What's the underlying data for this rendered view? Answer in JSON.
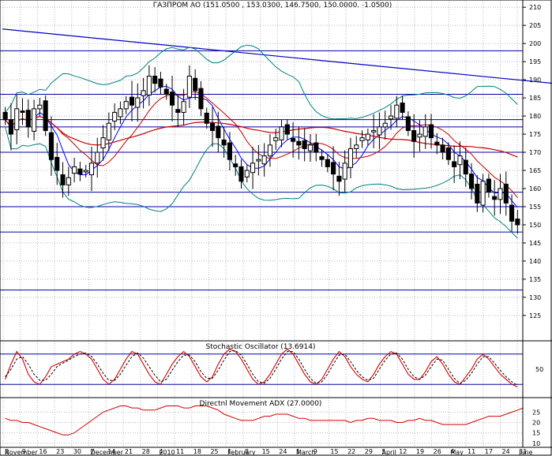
{
  "chart_data": [
    {
      "type": "candlestick",
      "title": "ГАЗПРОМ AO (151.0500 , 153.0300, 146.7500, 150.0000, -1.0500)",
      "ylim": [
        118,
        212
      ],
      "y_ticks": [
        125,
        130,
        135,
        140,
        145,
        150,
        155,
        160,
        165,
        170,
        175,
        180,
        185,
        190,
        195,
        200,
        205,
        210
      ],
      "x_day_labels": [
        "2",
        "9",
        "16",
        "23",
        "30",
        "7",
        "14",
        "21",
        "28",
        "4",
        "11",
        "18",
        "25",
        "1",
        "8",
        "15",
        "24",
        "1",
        "9",
        "15",
        "22",
        "29",
        "5",
        "12",
        "19",
        "26",
        "4",
        "11",
        "17",
        "24",
        "31"
      ],
      "x_month_labels": [
        "November",
        "December",
        "2010",
        "February",
        "March",
        "April",
        "May",
        "June"
      ],
      "horizontal_levels": [
        132,
        148,
        155,
        159,
        170,
        177,
        179,
        186,
        198
      ],
      "trendline": {
        "from": [
          0,
          204
        ],
        "to": [
          108,
          187
        ]
      },
      "close": [
        179,
        175,
        182,
        181,
        177,
        182,
        183,
        176,
        168,
        165,
        161,
        163,
        166,
        164,
        165,
        167,
        170,
        174,
        178,
        181,
        182,
        184,
        183,
        185,
        187,
        191,
        189,
        188,
        186,
        183,
        181,
        184,
        191,
        187,
        182,
        178,
        176,
        174,
        172,
        168,
        166,
        162,
        165,
        167,
        168,
        169,
        172,
        174,
        177,
        175,
        173,
        172,
        171,
        172,
        170,
        168,
        166,
        164,
        162,
        167,
        171,
        172,
        174,
        175,
        176,
        177,
        178,
        180,
        183,
        181,
        176,
        173,
        175,
        177,
        174,
        172,
        170,
        168,
        166,
        169,
        164,
        160,
        156,
        162,
        159,
        157,
        160,
        156,
        151,
        150
      ],
      "indicators": [
        "Bollinger Bands",
        "Moving averages"
      ],
      "ytick_labels": [
        125,
        130,
        135,
        140,
        145,
        150,
        155,
        160,
        165,
        170,
        175,
        180,
        185,
        190,
        195,
        200,
        205,
        210
      ]
    },
    {
      "type": "line",
      "title": "Stochastic Oscillator (13.6914)",
      "ylim": [
        0,
        100
      ],
      "y_ticks": [
        50
      ],
      "levels": [
        20,
        80
      ],
      "k": [
        30,
        60,
        85,
        70,
        40,
        25,
        20,
        35,
        55,
        60,
        65,
        70,
        80,
        85,
        80,
        70,
        50,
        30,
        20,
        30,
        50,
        70,
        85,
        80,
        60,
        40,
        25,
        20,
        40,
        60,
        75,
        85,
        75,
        55,
        35,
        25,
        35,
        60,
        80,
        90,
        85,
        70,
        50,
        30,
        20,
        25,
        40,
        60,
        80,
        90,
        80,
        60,
        40,
        25,
        20,
        30,
        50,
        70,
        85,
        75,
        55,
        40,
        30,
        25,
        40,
        60,
        75,
        85,
        80,
        60,
        40,
        30,
        30,
        45,
        65,
        75,
        60,
        40,
        25,
        20,
        35,
        50,
        70,
        80,
        70,
        55,
        40,
        30,
        20,
        15
      ],
      "d": [
        35,
        50,
        70,
        75,
        60,
        40,
        28,
        28,
        40,
        55,
        62,
        68,
        75,
        80,
        82,
        75,
        60,
        42,
        28,
        28,
        40,
        58,
        75,
        82,
        72,
        55,
        38,
        25,
        30,
        48,
        65,
        78,
        78,
        65,
        45,
        32,
        32,
        48,
        68,
        85,
        87,
        78,
        60,
        40,
        25,
        22,
        32,
        50,
        70,
        85,
        85,
        70,
        50,
        32,
        22,
        25,
        40,
        60,
        78,
        80,
        65,
        48,
        35,
        28,
        32,
        50,
        68,
        80,
        82,
        70,
        50,
        35,
        30,
        38,
        55,
        70,
        68,
        50,
        32,
        22,
        28,
        42,
        60,
        75,
        75,
        62,
        48,
        35,
        25,
        18
      ]
    },
    {
      "type": "line",
      "title": "Directnl Movement ADX (27.0000)",
      "ylim": [
        8,
        32
      ],
      "y_ticks": [
        10,
        15,
        20,
        25
      ],
      "series": [
        {
          "values": [
            22,
            21,
            21,
            20,
            20,
            19,
            18,
            17,
            16,
            15,
            14,
            14,
            15,
            17,
            19,
            21,
            23,
            25,
            26,
            27,
            28,
            28,
            27,
            27,
            26,
            26,
            26,
            27,
            28,
            28,
            28,
            27,
            27,
            28,
            28,
            28,
            27,
            26,
            24,
            23,
            22,
            21,
            21,
            21,
            22,
            23,
            23,
            24,
            24,
            24,
            23,
            22,
            22,
            21,
            21,
            21,
            21,
            21,
            21,
            21,
            20,
            21,
            21,
            22,
            22,
            21,
            21,
            21,
            20,
            20,
            21,
            21,
            22,
            21,
            21,
            20,
            19,
            19,
            19,
            19,
            19,
            20,
            21,
            22,
            23,
            23,
            23,
            24,
            25,
            26,
            27
          ]
        }
      ]
    }
  ]
}
